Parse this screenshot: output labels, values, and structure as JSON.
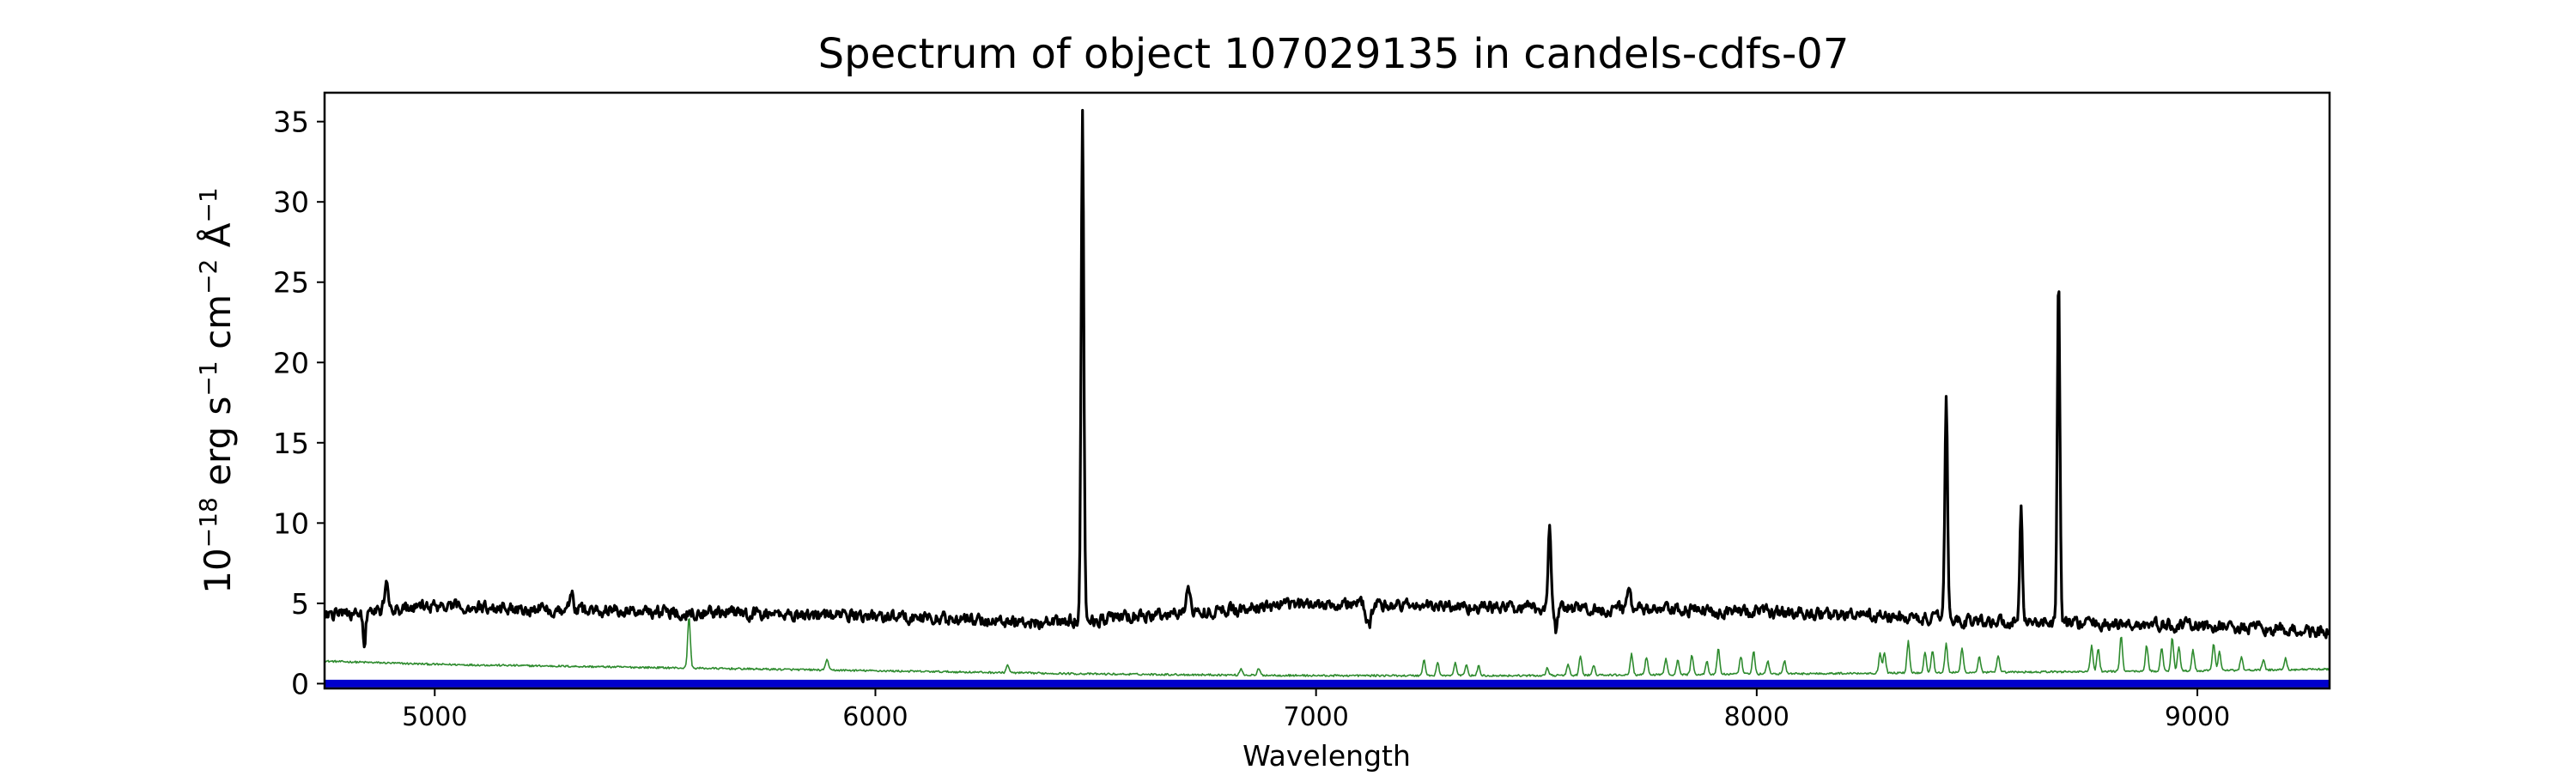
{
  "chart_data": {
    "type": "line",
    "title": "Spectrum of object 107029135 in candels-cdfs-07",
    "xlabel": "Wavelength",
    "ylabel": {
      "base": "10",
      "exp1": "−18",
      "text1": " erg s",
      "exp2": "−1",
      "text2": " cm",
      "exp3": "−2",
      "text3": " Å",
      "exp4": "−1"
    },
    "xlim": [
      4750,
      9300
    ],
    "ylim": [
      -0.3,
      36.8
    ],
    "xticks": [
      5000,
      6000,
      7000,
      8000,
      9000
    ],
    "xtick_labels": [
      "5000",
      "6000",
      "7000",
      "8000",
      "9000"
    ],
    "yticks": [
      0,
      5,
      10,
      15,
      20,
      25,
      30,
      35
    ],
    "ytick_labels": [
      "0",
      "5",
      "10",
      "15",
      "20",
      "25",
      "30",
      "35"
    ],
    "grid": false,
    "series": [
      {
        "role": "flux",
        "color": "#000000",
        "continuum": [
          [
            4750,
            4.3
          ],
          [
            5000,
            4.8
          ],
          [
            5500,
            4.5
          ],
          [
            6000,
            4.2
          ],
          [
            6400,
            3.8
          ],
          [
            6800,
            4.6
          ],
          [
            7000,
            5.0
          ],
          [
            7500,
            4.7
          ],
          [
            8000,
            4.5
          ],
          [
            8500,
            3.9
          ],
          [
            9000,
            3.6
          ],
          [
            9300,
            3.2
          ]
        ],
        "noise_amplitude": 0.6,
        "features": [
          {
            "center": 4840,
            "sigma": 3,
            "amp": -2.0
          },
          {
            "center": 4890,
            "sigma": 4,
            "amp": 1.6
          },
          {
            "center": 5310,
            "sigma": 3,
            "amp": 1.3
          },
          {
            "center": 6470,
            "sigma": 3,
            "amp": 31.5
          },
          {
            "center": 6710,
            "sigma": 4,
            "amp": 2.0
          },
          {
            "center": 7120,
            "sigma": 5,
            "amp": -1.5
          },
          {
            "center": 7530,
            "sigma": 3,
            "amp": 5.5
          },
          {
            "center": 7545,
            "sigma": 3,
            "amp": -1.3
          },
          {
            "center": 7710,
            "sigma": 4,
            "amp": 1.6
          },
          {
            "center": 8430,
            "sigma": 3,
            "amp": 14.0
          },
          {
            "center": 8600,
            "sigma": 3,
            "amp": 7.6
          },
          {
            "center": 8685,
            "sigma": 3,
            "amp": 21.6
          }
        ]
      },
      {
        "role": "sky",
        "color": "#2e8b2e",
        "continuum": [
          [
            4750,
            1.4
          ],
          [
            5000,
            1.2
          ],
          [
            5500,
            1.0
          ],
          [
            6000,
            0.8
          ],
          [
            6500,
            0.6
          ],
          [
            7000,
            0.5
          ],
          [
            7500,
            0.5
          ],
          [
            8000,
            0.6
          ],
          [
            8500,
            0.7
          ],
          [
            9000,
            0.8
          ],
          [
            9300,
            0.9
          ]
        ],
        "lines": [
          [
            5577,
            3.2
          ],
          [
            5890,
            0.7
          ],
          [
            6300,
            0.5
          ],
          [
            6830,
            0.4
          ],
          [
            6870,
            0.4
          ],
          [
            7245,
            1.0
          ],
          [
            7276,
            0.8
          ],
          [
            7316,
            0.8
          ],
          [
            7341,
            0.7
          ],
          [
            7369,
            0.6
          ],
          [
            7525,
            0.5
          ],
          [
            7572,
            0.7
          ],
          [
            7600,
            1.2
          ],
          [
            7630,
            0.6
          ],
          [
            7716,
            1.3
          ],
          [
            7750,
            1.1
          ],
          [
            7794,
            1.0
          ],
          [
            7821,
            0.9
          ],
          [
            7853,
            1.2
          ],
          [
            7887,
            0.8
          ],
          [
            7913,
            1.6
          ],
          [
            7964,
            1.1
          ],
          [
            7993,
            1.4
          ],
          [
            8025,
            0.8
          ],
          [
            8063,
            0.8
          ],
          [
            8280,
            1.2
          ],
          [
            8290,
            1.3
          ],
          [
            8344,
            2.0
          ],
          [
            8382,
            1.3
          ],
          [
            8399,
            1.4
          ],
          [
            8430,
            1.8
          ],
          [
            8466,
            1.5
          ],
          [
            8505,
            1.0
          ],
          [
            8548,
            1.0
          ],
          [
            8760,
            1.6
          ],
          [
            8775,
            1.4
          ],
          [
            8827,
            2.2
          ],
          [
            8885,
            1.6
          ],
          [
            8919,
            1.4
          ],
          [
            8943,
            2.1
          ],
          [
            8958,
            1.5
          ],
          [
            8990,
            1.3
          ],
          [
            9037,
            1.7
          ],
          [
            9050,
            1.2
          ],
          [
            9100,
            0.8
          ],
          [
            9150,
            0.6
          ],
          [
            9200,
            0.7
          ]
        ]
      },
      {
        "role": "baseline",
        "color": "#0000cc",
        "value": 0
      }
    ]
  }
}
